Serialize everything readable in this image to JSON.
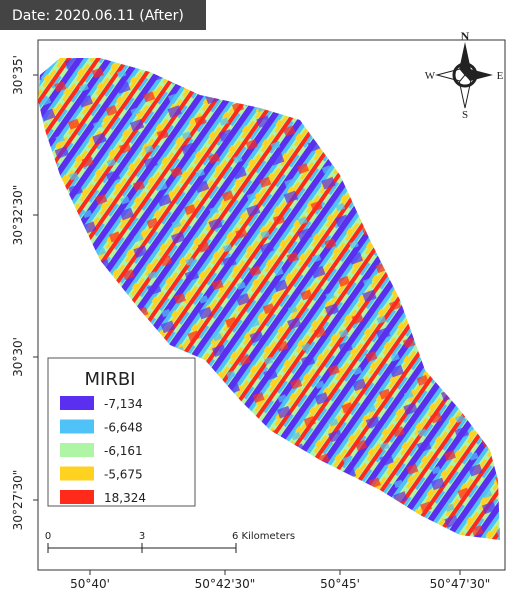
{
  "header": {
    "date": "Date: 2020.06.11 (After)"
  },
  "compass": {
    "north": "N",
    "south": "S",
    "west": "W",
    "east": "E"
  },
  "axes": {
    "y_labels": [
      "30°35'",
      "30°32'30\"",
      "30°30'",
      "30°27'30\""
    ],
    "x_labels": [
      "50°40'",
      "50°42'30\"",
      "50°45'",
      "50°47'30\""
    ]
  },
  "legend": {
    "title": "MIRBI",
    "items": [
      {
        "label": "-7,134",
        "color": "#5a2ff0"
      },
      {
        "label": "-6,648",
        "color": "#4fc3f7"
      },
      {
        "label": "-6,161",
        "color": "#aef5a6"
      },
      {
        "label": "-5,675",
        "color": "#ffd21f"
      },
      {
        "label": "18,324",
        "color": "#ff2a1a"
      }
    ]
  },
  "scale_bar": {
    "labels": [
      "0",
      "3",
      "6 Kilometers"
    ]
  }
}
